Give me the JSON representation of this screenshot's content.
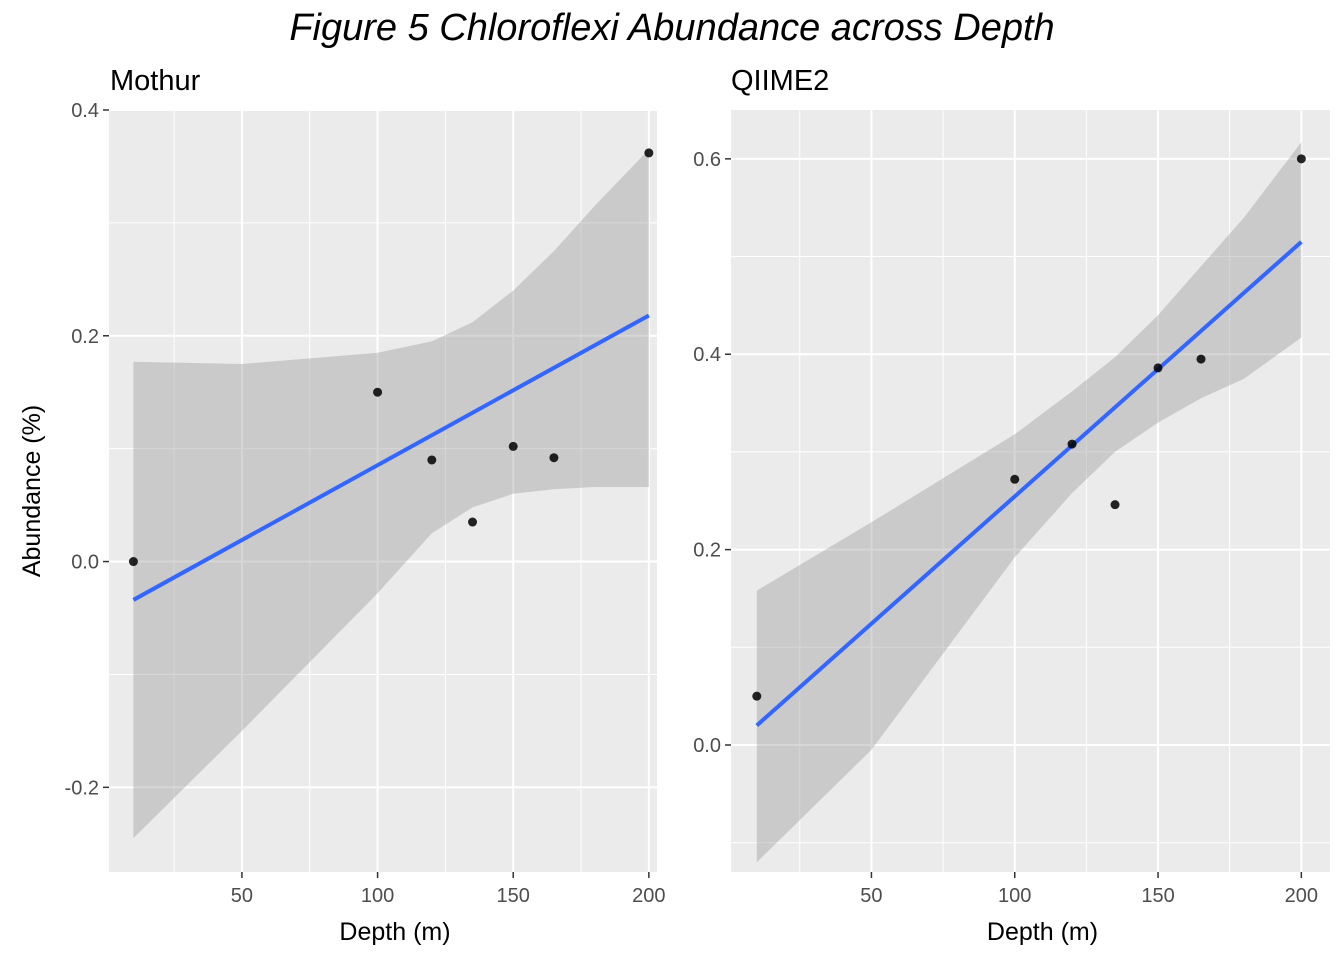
{
  "figure": {
    "title": "Figure 5 Chloroflexi Abundance across Depth"
  },
  "chart_data": [
    {
      "type": "scatter",
      "title": "Mothur",
      "xlabel": "Depth (m)",
      "ylabel": "Abundance (%)",
      "xlim": [
        1,
        203
      ],
      "ylim": [
        -0.275,
        0.4
      ],
      "xticks": [
        50,
        100,
        150,
        200
      ],
      "xtick_labels": [
        "50",
        "100",
        "150",
        "200"
      ],
      "yticks": [
        -0.2,
        0.0,
        0.2,
        0.4
      ],
      "ytick_labels": [
        "-0.2",
        "0.0",
        "0.2",
        "0.4"
      ],
      "grid": true,
      "points": [
        {
          "x": 10,
          "y": 0.0
        },
        {
          "x": 100,
          "y": 0.15
        },
        {
          "x": 120,
          "y": 0.09
        },
        {
          "x": 135,
          "y": 0.035
        },
        {
          "x": 150,
          "y": 0.102
        },
        {
          "x": 165,
          "y": 0.092
        },
        {
          "x": 200,
          "y": 0.362
        }
      ],
      "fit": {
        "x": [
          10,
          200
        ],
        "y": [
          -0.034,
          0.218
        ],
        "color": "#3366FF"
      },
      "ci_band": {
        "x": [
          10,
          50,
          100,
          120,
          135,
          150,
          165,
          180,
          200
        ],
        "lower": [
          -0.245,
          -0.15,
          -0.028,
          0.025,
          0.048,
          0.06,
          0.064,
          0.066,
          0.066
        ],
        "upper": [
          0.177,
          0.175,
          0.185,
          0.195,
          0.212,
          0.24,
          0.275,
          0.315,
          0.365
        ]
      }
    },
    {
      "type": "scatter",
      "title": "QIIME2",
      "xlabel": "Depth (m)",
      "ylabel": "",
      "xlim": [
        1,
        210
      ],
      "ylim": [
        -0.13,
        0.65
      ],
      "xticks": [
        50,
        100,
        150,
        200
      ],
      "xtick_labels": [
        "50",
        "100",
        "150",
        "200"
      ],
      "yticks": [
        0.0,
        0.2,
        0.4,
        0.6
      ],
      "ytick_labels": [
        "0.0",
        "0.2",
        "0.4",
        "0.6"
      ],
      "grid": true,
      "points": [
        {
          "x": 10,
          "y": 0.05
        },
        {
          "x": 100,
          "y": 0.272
        },
        {
          "x": 120,
          "y": 0.308
        },
        {
          "x": 135,
          "y": 0.246
        },
        {
          "x": 150,
          "y": 0.386
        },
        {
          "x": 165,
          "y": 0.395
        },
        {
          "x": 200,
          "y": 0.6
        }
      ],
      "fit": {
        "x": [
          10,
          200
        ],
        "y": [
          0.02,
          0.515
        ],
        "color": "#3366FF"
      },
      "ci_band": {
        "x": [
          10,
          50,
          100,
          120,
          135,
          150,
          165,
          180,
          200
        ],
        "lower": [
          -0.12,
          -0.005,
          0.192,
          0.258,
          0.3,
          0.33,
          0.355,
          0.375,
          0.417
        ],
        "upper": [
          0.158,
          0.228,
          0.318,
          0.362,
          0.397,
          0.44,
          0.49,
          0.54,
          0.617
        ]
      }
    }
  ]
}
